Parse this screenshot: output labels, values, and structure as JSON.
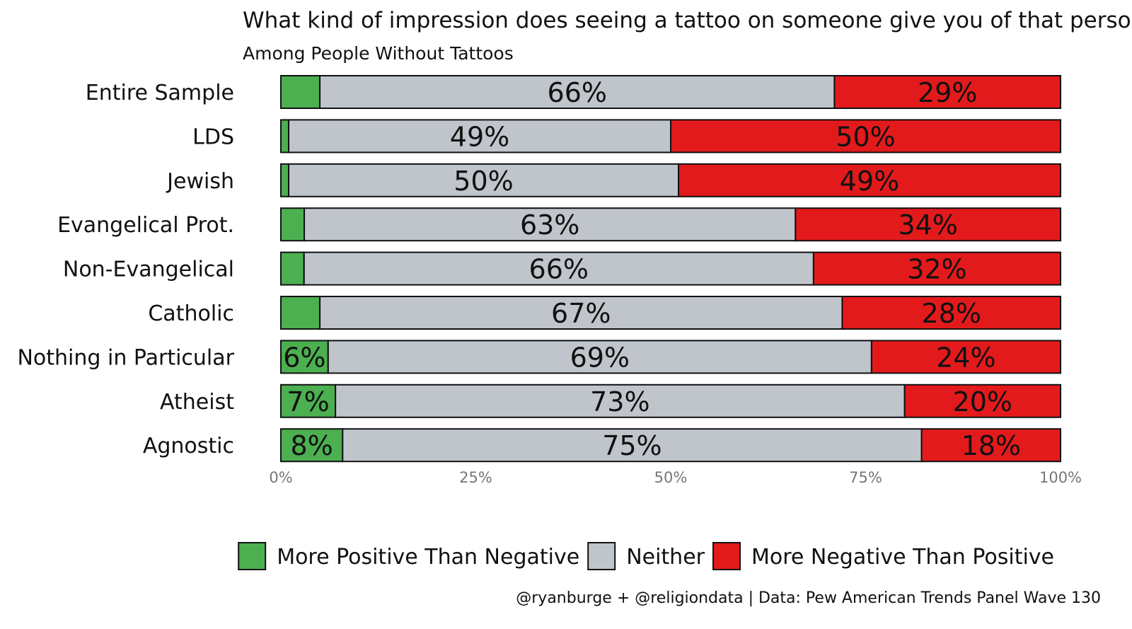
{
  "chart_data": {
    "type": "bar",
    "orientation": "horizontal",
    "stacked": true,
    "title": "What kind of impression does seeing a tattoo on someone give you of that person?",
    "subtitle": "Among People Without Tattoos",
    "caption": "@ryanburge + @religiondata | Data: Pew American Trends Panel Wave 130",
    "categories": [
      "Entire Sample",
      "LDS",
      "Jewish",
      "Evangelical Prot.",
      "Non-Evangelical",
      "Catholic",
      "Nothing in Particular",
      "Atheist",
      "Agnostic"
    ],
    "series": [
      {
        "name": "More Positive Than Negative",
        "color": "#4caf50",
        "values": [
          5,
          1,
          1,
          3,
          3,
          5,
          6,
          7,
          8
        ],
        "labels": [
          "",
          "",
          "",
          "",
          "",
          "",
          "6%",
          "7%",
          "8%"
        ]
      },
      {
        "name": "Neither",
        "color": "#c0c5cc",
        "values": [
          66,
          49,
          50,
          63,
          66,
          67,
          69,
          73,
          75
        ],
        "labels": [
          "66%",
          "49%",
          "50%",
          "63%",
          "66%",
          "67%",
          "69%",
          "73%",
          "75%"
        ]
      },
      {
        "name": "More Negative Than Positive",
        "color": "#e31a1c",
        "values": [
          29,
          50,
          49,
          34,
          32,
          28,
          24,
          20,
          18
        ],
        "labels": [
          "29%",
          "50%",
          "49%",
          "34%",
          "32%",
          "28%",
          "24%",
          "20%",
          "18%"
        ]
      }
    ],
    "xlim": [
      0,
      100
    ],
    "xticks": [
      "0%",
      "25%",
      "50%",
      "75%",
      "100%"
    ],
    "xlabel": "",
    "ylabel": "",
    "grid": false,
    "legend_position": "bottom"
  }
}
